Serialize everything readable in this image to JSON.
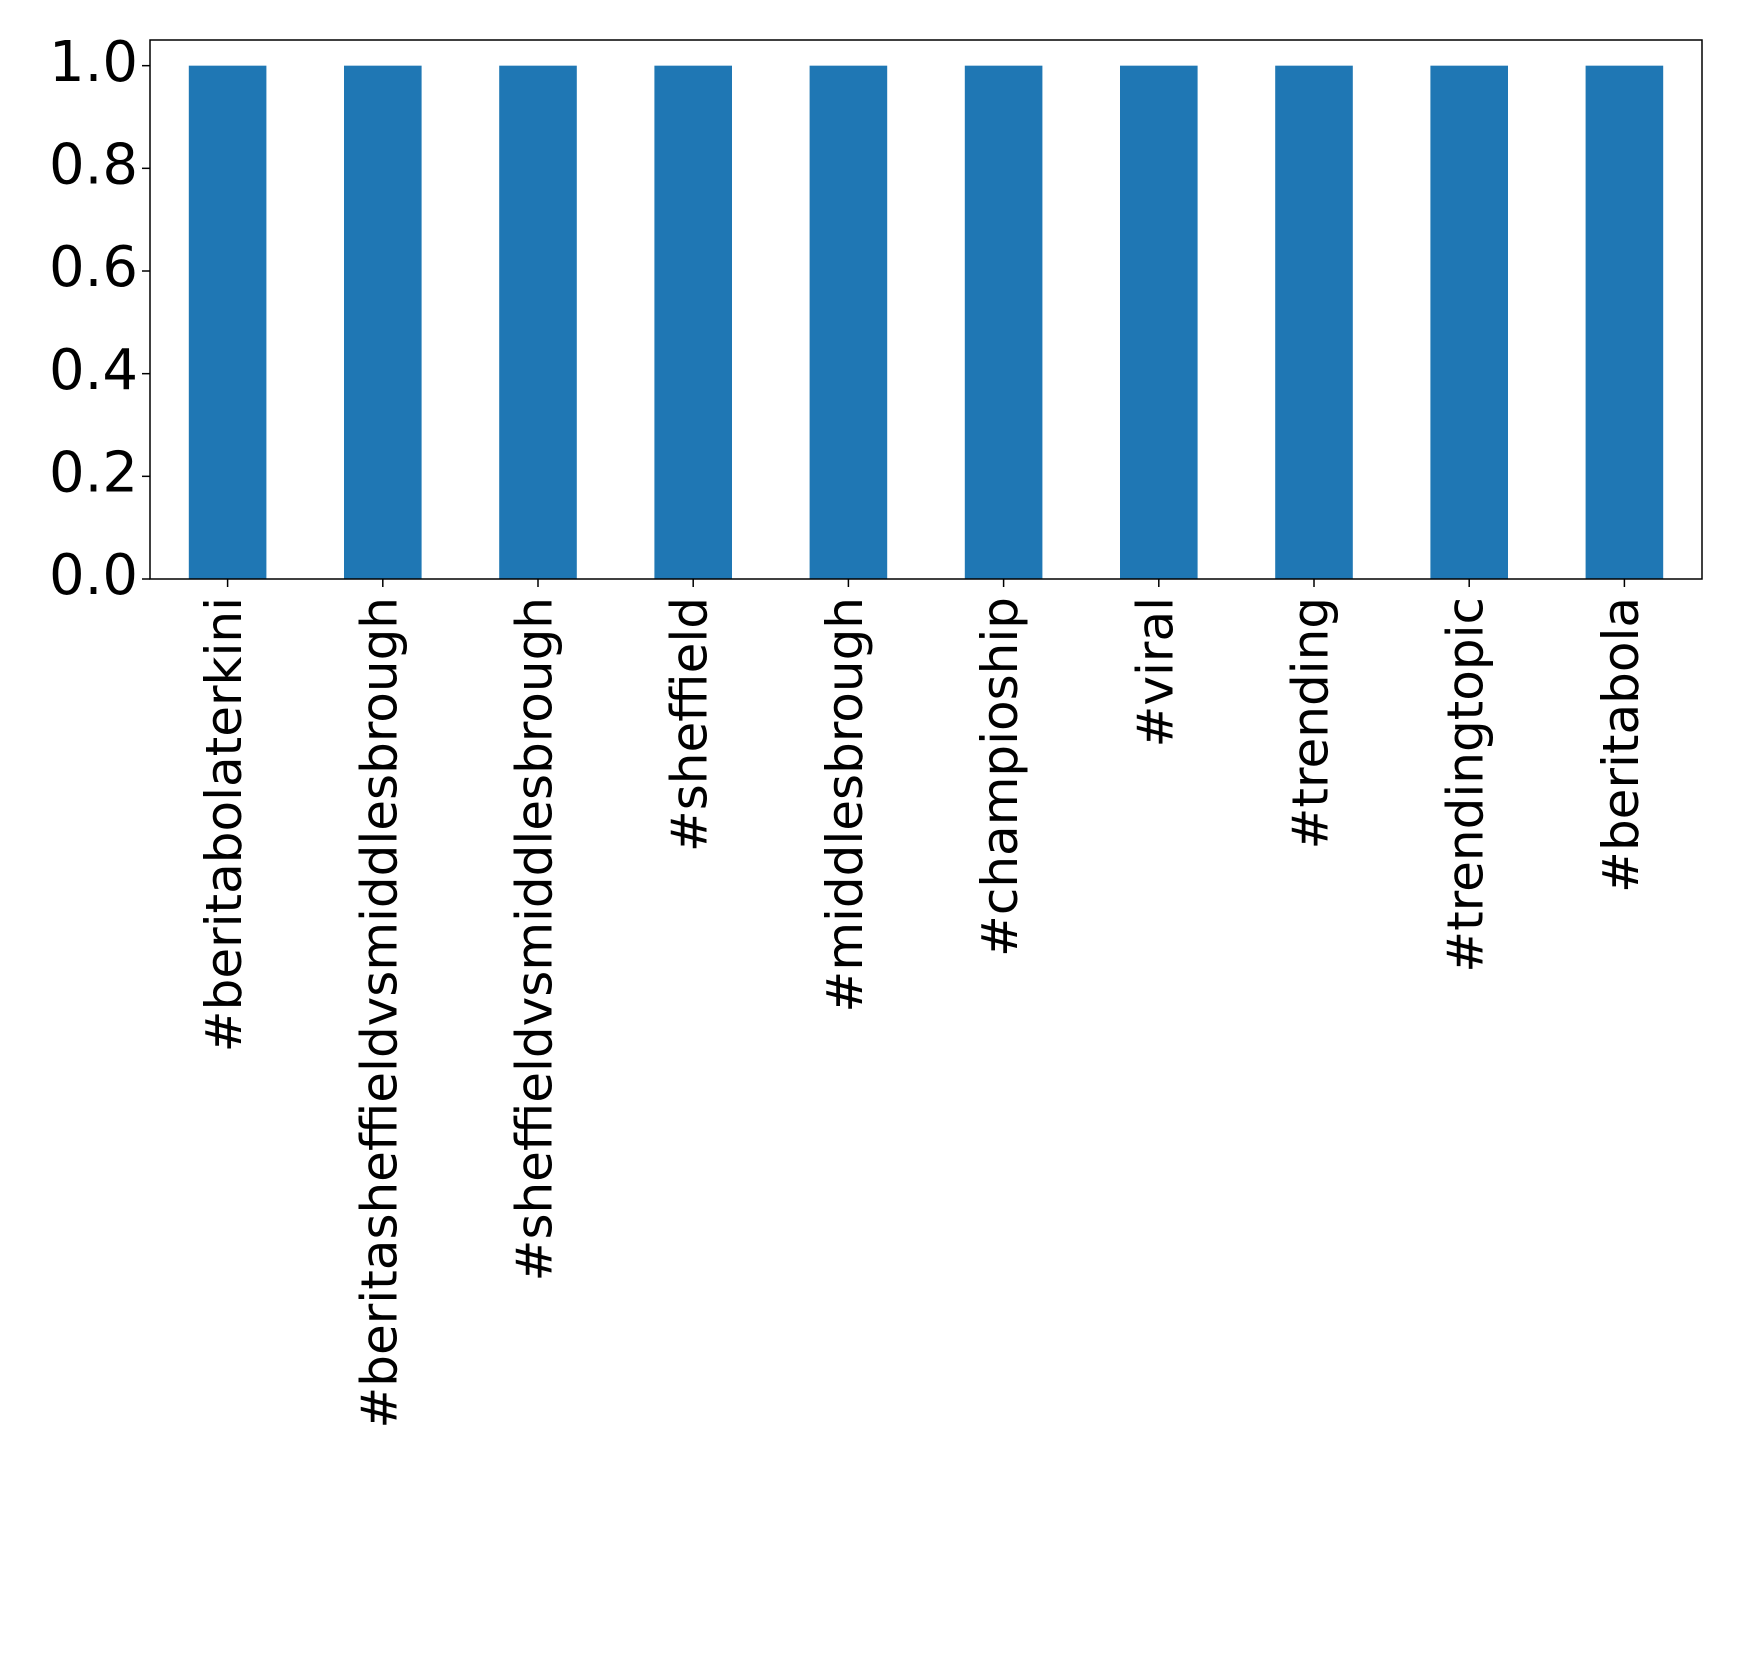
{
  "chart_data": {
    "type": "bar",
    "title": "",
    "xlabel": "",
    "ylabel": "",
    "categories": [
      "#beritabolaterkini",
      "#beritasheffieldvsmiddlesbrough",
      "#sheffieldvsmiddlesbrough",
      "#sheffield",
      "#middlesbrough",
      "#champioship",
      "#viral",
      "#trending",
      "#trendingtopic",
      "#beritabola"
    ],
    "values": [
      1.0,
      1.0,
      1.0,
      1.0,
      1.0,
      1.0,
      1.0,
      1.0,
      1.0,
      1.0
    ],
    "ylim": [
      0,
      1.05
    ],
    "yticks": [
      "0.0",
      "0.2",
      "0.4",
      "0.6",
      "0.8",
      "1.0"
    ],
    "bar_color": "#1f77b4",
    "grid": false,
    "legend": "none"
  }
}
